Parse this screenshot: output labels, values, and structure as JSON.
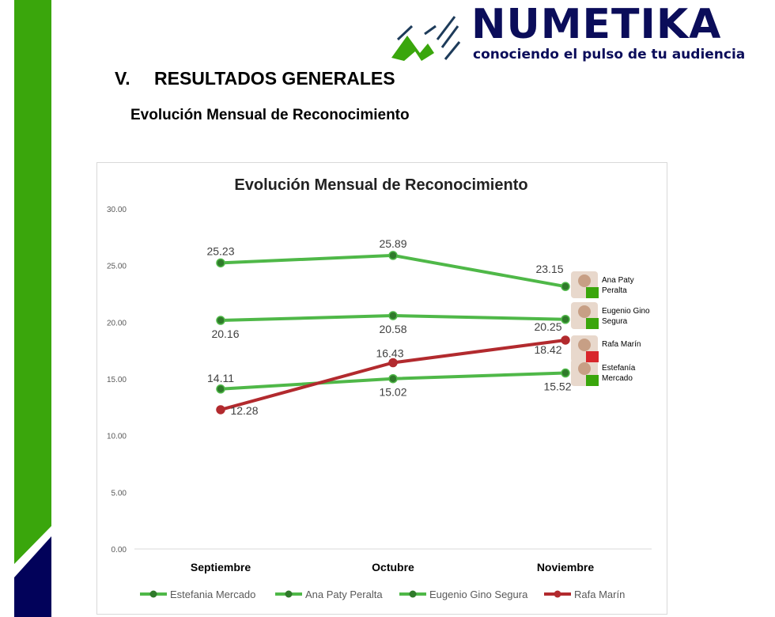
{
  "brand": {
    "name": "NUMETIKA",
    "tagline": "conociendo el pulso de tu audiencia"
  },
  "section": {
    "number": "V.",
    "title": "RESULTADOS GENERALES",
    "subtitle": "Evolución Mensual de Reconocimiento"
  },
  "colors": {
    "green": "#4fb848",
    "red": "#b22a2e",
    "navy": "#0b0d5a",
    "strip_green": "#3aa60c"
  },
  "chart_data": {
    "type": "line",
    "title": "Evolución Mensual de Reconocimiento",
    "categories": [
      "Septiembre",
      "Octubre",
      "Noviembre"
    ],
    "ylim": [
      0,
      30
    ],
    "yticks": [
      "0.00",
      "5.00",
      "10.00",
      "15.00",
      "20.00",
      "25.00",
      "30.00"
    ],
    "grid": false,
    "legend_position": "bottom",
    "series": [
      {
        "name": "Estefania Mercado",
        "values": [
          14.11,
          15.02,
          15.52
        ],
        "labels": [
          "14.11",
          "15.02",
          "15.52"
        ],
        "color": "#4fb848",
        "end_label": [
          "Estefanía",
          "Mercado"
        ]
      },
      {
        "name": "Ana Paty Peralta",
        "values": [
          25.23,
          25.89,
          23.15
        ],
        "labels": [
          "25.23",
          "25.89",
          "23.15"
        ],
        "color": "#4fb848",
        "end_label": [
          "Ana Paty",
          "Peralta"
        ]
      },
      {
        "name": "Eugenio Gino Segura",
        "values": [
          20.16,
          20.58,
          20.25
        ],
        "labels": [
          "20.16",
          "20.58",
          "20.25"
        ],
        "color": "#4fb848",
        "end_label": [
          "Eugenio Gino",
          "Segura"
        ]
      },
      {
        "name": "Rafa Marín",
        "values": [
          12.28,
          16.43,
          18.42
        ],
        "labels": [
          "12.28",
          "16.43",
          "18.42"
        ],
        "color": "#b22a2e",
        "end_label": [
          "Rafa Marín",
          ""
        ]
      }
    ]
  }
}
